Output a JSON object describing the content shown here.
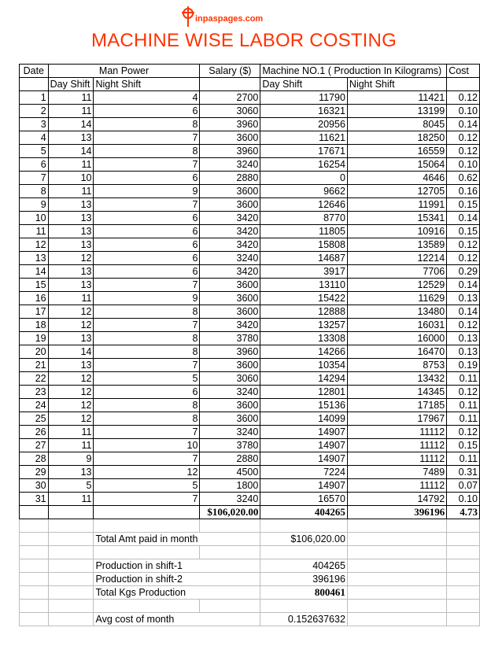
{
  "logo": {
    "text": "inpaspages.com"
  },
  "title": "MACHINE WISE LABOR COSTING",
  "header": {
    "date": "Date",
    "man_power": "Man Power",
    "salary": "Salary ($)",
    "machine": "Machine NO.1 ( Production In Kilograms)",
    "cost": "Cost",
    "day_shift": "Day Shift",
    "night_shift": "Night Shift",
    "prod_day_shift": "Day Shift",
    "prod_night_shift": "Night Shift"
  },
  "rows": [
    [
      "1",
      "11",
      "4",
      "2700",
      "11790",
      "11421",
      "0.12"
    ],
    [
      "2",
      "11",
      "6",
      "3060",
      "16321",
      "13199",
      "0.10"
    ],
    [
      "3",
      "14",
      "8",
      "3960",
      "20956",
      "8045",
      "0.14"
    ],
    [
      "4",
      "13",
      "7",
      "3600",
      "11621",
      "18250",
      "0.12"
    ],
    [
      "5",
      "14",
      "8",
      "3960",
      "17671",
      "16559",
      "0.12"
    ],
    [
      "6",
      "11",
      "7",
      "3240",
      "16254",
      "15064",
      "0.10"
    ],
    [
      "7",
      "10",
      "6",
      "2880",
      "0",
      "4646",
      "0.62"
    ],
    [
      "8",
      "11",
      "9",
      "3600",
      "9662",
      "12705",
      "0.16"
    ],
    [
      "9",
      "13",
      "7",
      "3600",
      "12646",
      "11991",
      "0.15"
    ],
    [
      "10",
      "13",
      "6",
      "3420",
      "8770",
      "15341",
      "0.14"
    ],
    [
      "11",
      "13",
      "6",
      "3420",
      "11805",
      "10916",
      "0.15"
    ],
    [
      "12",
      "13",
      "6",
      "3420",
      "15808",
      "13589",
      "0.12"
    ],
    [
      "13",
      "12",
      "6",
      "3240",
      "14687",
      "12214",
      "0.12"
    ],
    [
      "14",
      "13",
      "6",
      "3420",
      "3917",
      "7706",
      "0.29"
    ],
    [
      "15",
      "13",
      "7",
      "3600",
      "13110",
      "12529",
      "0.14"
    ],
    [
      "16",
      "11",
      "9",
      "3600",
      "15422",
      "11629",
      "0.13"
    ],
    [
      "17",
      "12",
      "8",
      "3600",
      "12888",
      "13480",
      "0.14"
    ],
    [
      "18",
      "12",
      "7",
      "3420",
      "13257",
      "16031",
      "0.12"
    ],
    [
      "19",
      "13",
      "8",
      "3780",
      "13308",
      "16000",
      "0.13"
    ],
    [
      "20",
      "14",
      "8",
      "3960",
      "14266",
      "16470",
      "0.13"
    ],
    [
      "21",
      "13",
      "7",
      "3600",
      "10354",
      "8753",
      "0.19"
    ],
    [
      "22",
      "12",
      "5",
      "3060",
      "14294",
      "13432",
      "0.11"
    ],
    [
      "23",
      "12",
      "6",
      "3240",
      "12801",
      "14345",
      "0.12"
    ],
    [
      "24",
      "12",
      "8",
      "3600",
      "15136",
      "17185",
      "0.11"
    ],
    [
      "25",
      "12",
      "8",
      "3600",
      "14099",
      "17967",
      "0.11"
    ],
    [
      "26",
      "11",
      "7",
      "3240",
      "14907",
      "11112",
      "0.12"
    ],
    [
      "27",
      "11",
      "10",
      "3780",
      "14907",
      "11112",
      "0.15"
    ],
    [
      "28",
      "9",
      "7",
      "2880",
      "14907",
      "11112",
      "0.11"
    ],
    [
      "29",
      "13",
      "12",
      "4500",
      "7224",
      "7489",
      "0.31"
    ],
    [
      "30",
      "5",
      "5",
      "1800",
      "14907",
      "11112",
      "0.07"
    ],
    [
      "31",
      "11",
      "7",
      "3240",
      "16570",
      "14792",
      "0.10"
    ]
  ],
  "totals": {
    "salary": "$106,020.00",
    "day": "404265",
    "night": "396196",
    "cost": "4.73"
  },
  "summary": {
    "total_amt_label": "Total Amt paid in month",
    "total_amt": "$106,020.00",
    "shift1_label": "Production in shift-1",
    "shift1": "404265",
    "shift2_label": "Production in shift-2",
    "shift2": "396196",
    "total_kgs_label": "Total Kgs Production",
    "total_kgs": "800461",
    "avg_label": "Avg cost of month",
    "avg": "0.152637632"
  }
}
